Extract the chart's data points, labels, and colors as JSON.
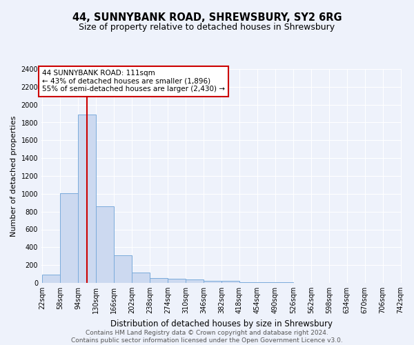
{
  "title": "44, SUNNYBANK ROAD, SHREWSBURY, SY2 6RG",
  "subtitle": "Size of property relative to detached houses in Shrewsbury",
  "xlabel": "Distribution of detached houses by size in Shrewsbury",
  "ylabel": "Number of detached properties",
  "bin_edges": [
    22,
    58,
    94,
    130,
    166,
    202,
    238,
    274,
    310,
    346,
    382,
    418,
    454,
    490,
    526,
    562,
    598,
    634,
    670,
    706,
    742
  ],
  "bar_heights": [
    90,
    1010,
    1890,
    860,
    310,
    115,
    55,
    50,
    35,
    20,
    20,
    10,
    5,
    5,
    3,
    2,
    2,
    1,
    1,
    1
  ],
  "bar_color": "#ccd9f0",
  "bar_edge_color": "#7aabdb",
  "background_color": "#eef2fb",
  "grid_color": "#ffffff",
  "red_line_x": 111,
  "annotation_text": "44 SUNNYBANK ROAD: 111sqm\n← 43% of detached houses are smaller (1,896)\n55% of semi-detached houses are larger (2,430) →",
  "annotation_box_color": "#ffffff",
  "annotation_border_color": "#cc0000",
  "ylim": [
    0,
    2400
  ],
  "yticks": [
    0,
    200,
    400,
    600,
    800,
    1000,
    1200,
    1400,
    1600,
    1800,
    2000,
    2200,
    2400
  ],
  "footer_text": "Contains HM Land Registry data © Crown copyright and database right 2024.\nContains public sector information licensed under the Open Government Licence v3.0.",
  "title_fontsize": 10.5,
  "subtitle_fontsize": 9,
  "xlabel_fontsize": 8.5,
  "ylabel_fontsize": 8,
  "tick_fontsize": 7,
  "annotation_fontsize": 7.5,
  "footer_fontsize": 6.5
}
